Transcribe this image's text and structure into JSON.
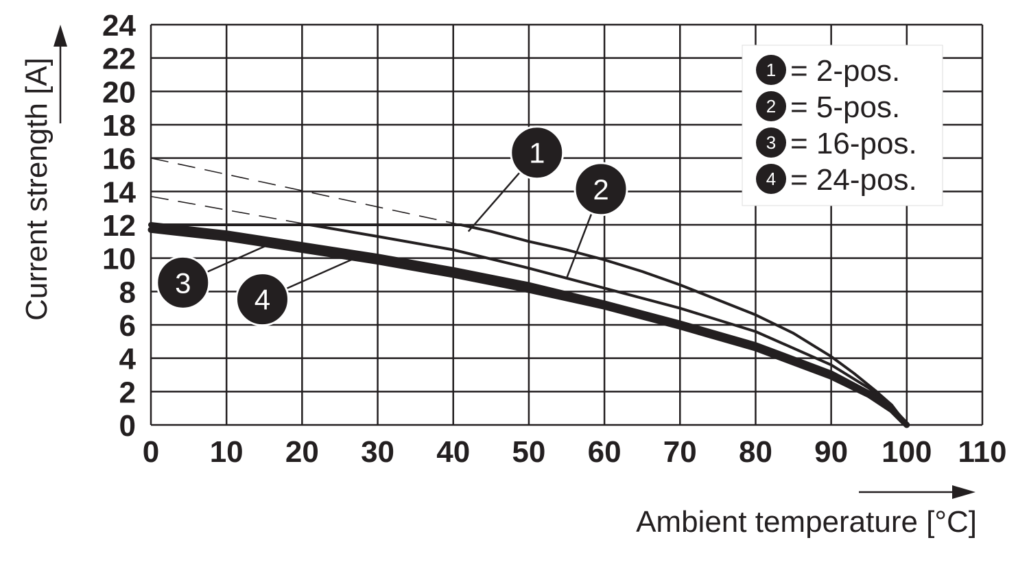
{
  "chart_data": {
    "type": "line",
    "title": "",
    "xlabel": "Ambient temperature [°C]",
    "ylabel": "Current strength [A]",
    "xlim": [
      0,
      110
    ],
    "ylim": [
      0,
      24
    ],
    "x_ticks": [
      "0",
      "10",
      "20",
      "30",
      "40",
      "50",
      "60",
      "70",
      "80",
      "90",
      "100",
      "110"
    ],
    "y_ticks": [
      "0",
      "2",
      "4",
      "6",
      "8",
      "10",
      "12",
      "14",
      "16",
      "18",
      "20",
      "22",
      "24"
    ],
    "grid": true,
    "legend_position": "top-right",
    "legend": [
      {
        "num": "1",
        "text": "= 2-pos."
      },
      {
        "num": "2",
        "text": "= 5-pos."
      },
      {
        "num": "3",
        "text": "= 16-pos."
      },
      {
        "num": "4",
        "text": "= 24-pos."
      }
    ],
    "colors": {
      "line": "#231f20",
      "grid": "#231f20",
      "background": "#ffffff"
    },
    "series": [
      {
        "name": "2-pos.",
        "label": "1",
        "x": [
          0,
          41,
          45,
          50,
          55,
          60,
          65,
          70,
          75,
          80,
          85,
          90,
          93,
          96,
          98,
          100
        ],
        "y": [
          12,
          12,
          11.6,
          11.0,
          10.5,
          9.9,
          9.2,
          8.4,
          7.5,
          6.6,
          5.5,
          4.1,
          3.1,
          2.0,
          1.2,
          0
        ],
        "dashed_x": [
          0,
          41
        ],
        "dashed_y": [
          16,
          12
        ]
      },
      {
        "name": "5-pos.",
        "label": "2",
        "x": [
          21,
          30,
          40,
          50,
          60,
          70,
          80,
          90,
          95,
          98,
          100
        ],
        "y": [
          12,
          11.3,
          10.5,
          9.4,
          8.2,
          7.0,
          5.6,
          3.6,
          2.2,
          1.2,
          0
        ],
        "dashed_x": [
          0,
          21
        ],
        "dashed_y": [
          13.7,
          12
        ]
      },
      {
        "name": "16-pos.",
        "label": "3",
        "x": [
          0,
          10,
          20,
          30,
          40,
          50,
          60,
          70,
          80,
          90,
          95,
          98,
          100
        ],
        "y": [
          12,
          11.5,
          10.8,
          10.1,
          9.3,
          8.4,
          7.3,
          6.1,
          4.8,
          3.1,
          1.9,
          1.0,
          0
        ]
      },
      {
        "name": "24-pos.",
        "label": "4",
        "x": [
          0,
          10,
          20,
          30,
          40,
          50,
          60,
          70,
          80,
          90,
          95,
          98,
          100
        ],
        "y": [
          11.7,
          11.2,
          10.5,
          9.8,
          9.0,
          8.1,
          7.1,
          5.9,
          4.6,
          2.9,
          1.8,
          0.9,
          0
        ]
      }
    ],
    "callouts": [
      {
        "label": "1",
        "x_value": 42,
        "y_value": 11.6
      },
      {
        "label": "2",
        "x_value": 55,
        "y_value": 8.8
      },
      {
        "label": "3",
        "x_value": 16.5,
        "y_value": 11.0
      },
      {
        "label": "4",
        "x_value": 27,
        "y_value": 10.0
      }
    ]
  }
}
